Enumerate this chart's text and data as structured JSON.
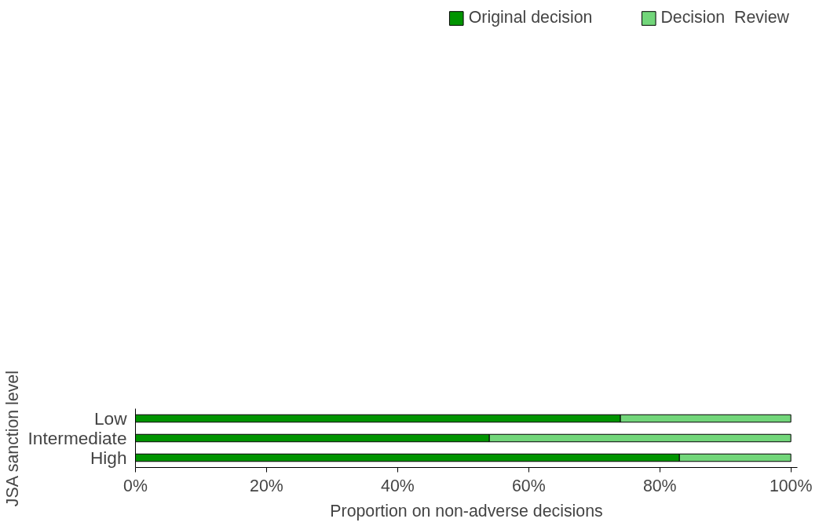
{
  "chart_data": {
    "type": "bar",
    "orientation": "horizontal",
    "stacked": true,
    "categories": [
      "Low",
      "Intermediate",
      "High"
    ],
    "series": [
      {
        "name": "Original decision",
        "color": "#009400",
        "values": [
          74,
          54,
          83
        ]
      },
      {
        "name": "Decision  Review",
        "color": "#72d67a",
        "values": [
          26,
          46,
          17
        ]
      }
    ],
    "xlabel": "Proportion on non-adverse decisions",
    "ylabel": "JSA sanction level",
    "xlim": [
      0,
      101
    ],
    "xticks": [
      {
        "value": 0,
        "label": "0%"
      },
      {
        "value": 20,
        "label": "20%"
      },
      {
        "value": 40,
        "label": "40%"
      },
      {
        "value": 60,
        "label": "60%"
      },
      {
        "value": 80,
        "label": "80%"
      },
      {
        "value": 100,
        "label": "100%"
      }
    ],
    "grid": false,
    "legend": "top"
  }
}
